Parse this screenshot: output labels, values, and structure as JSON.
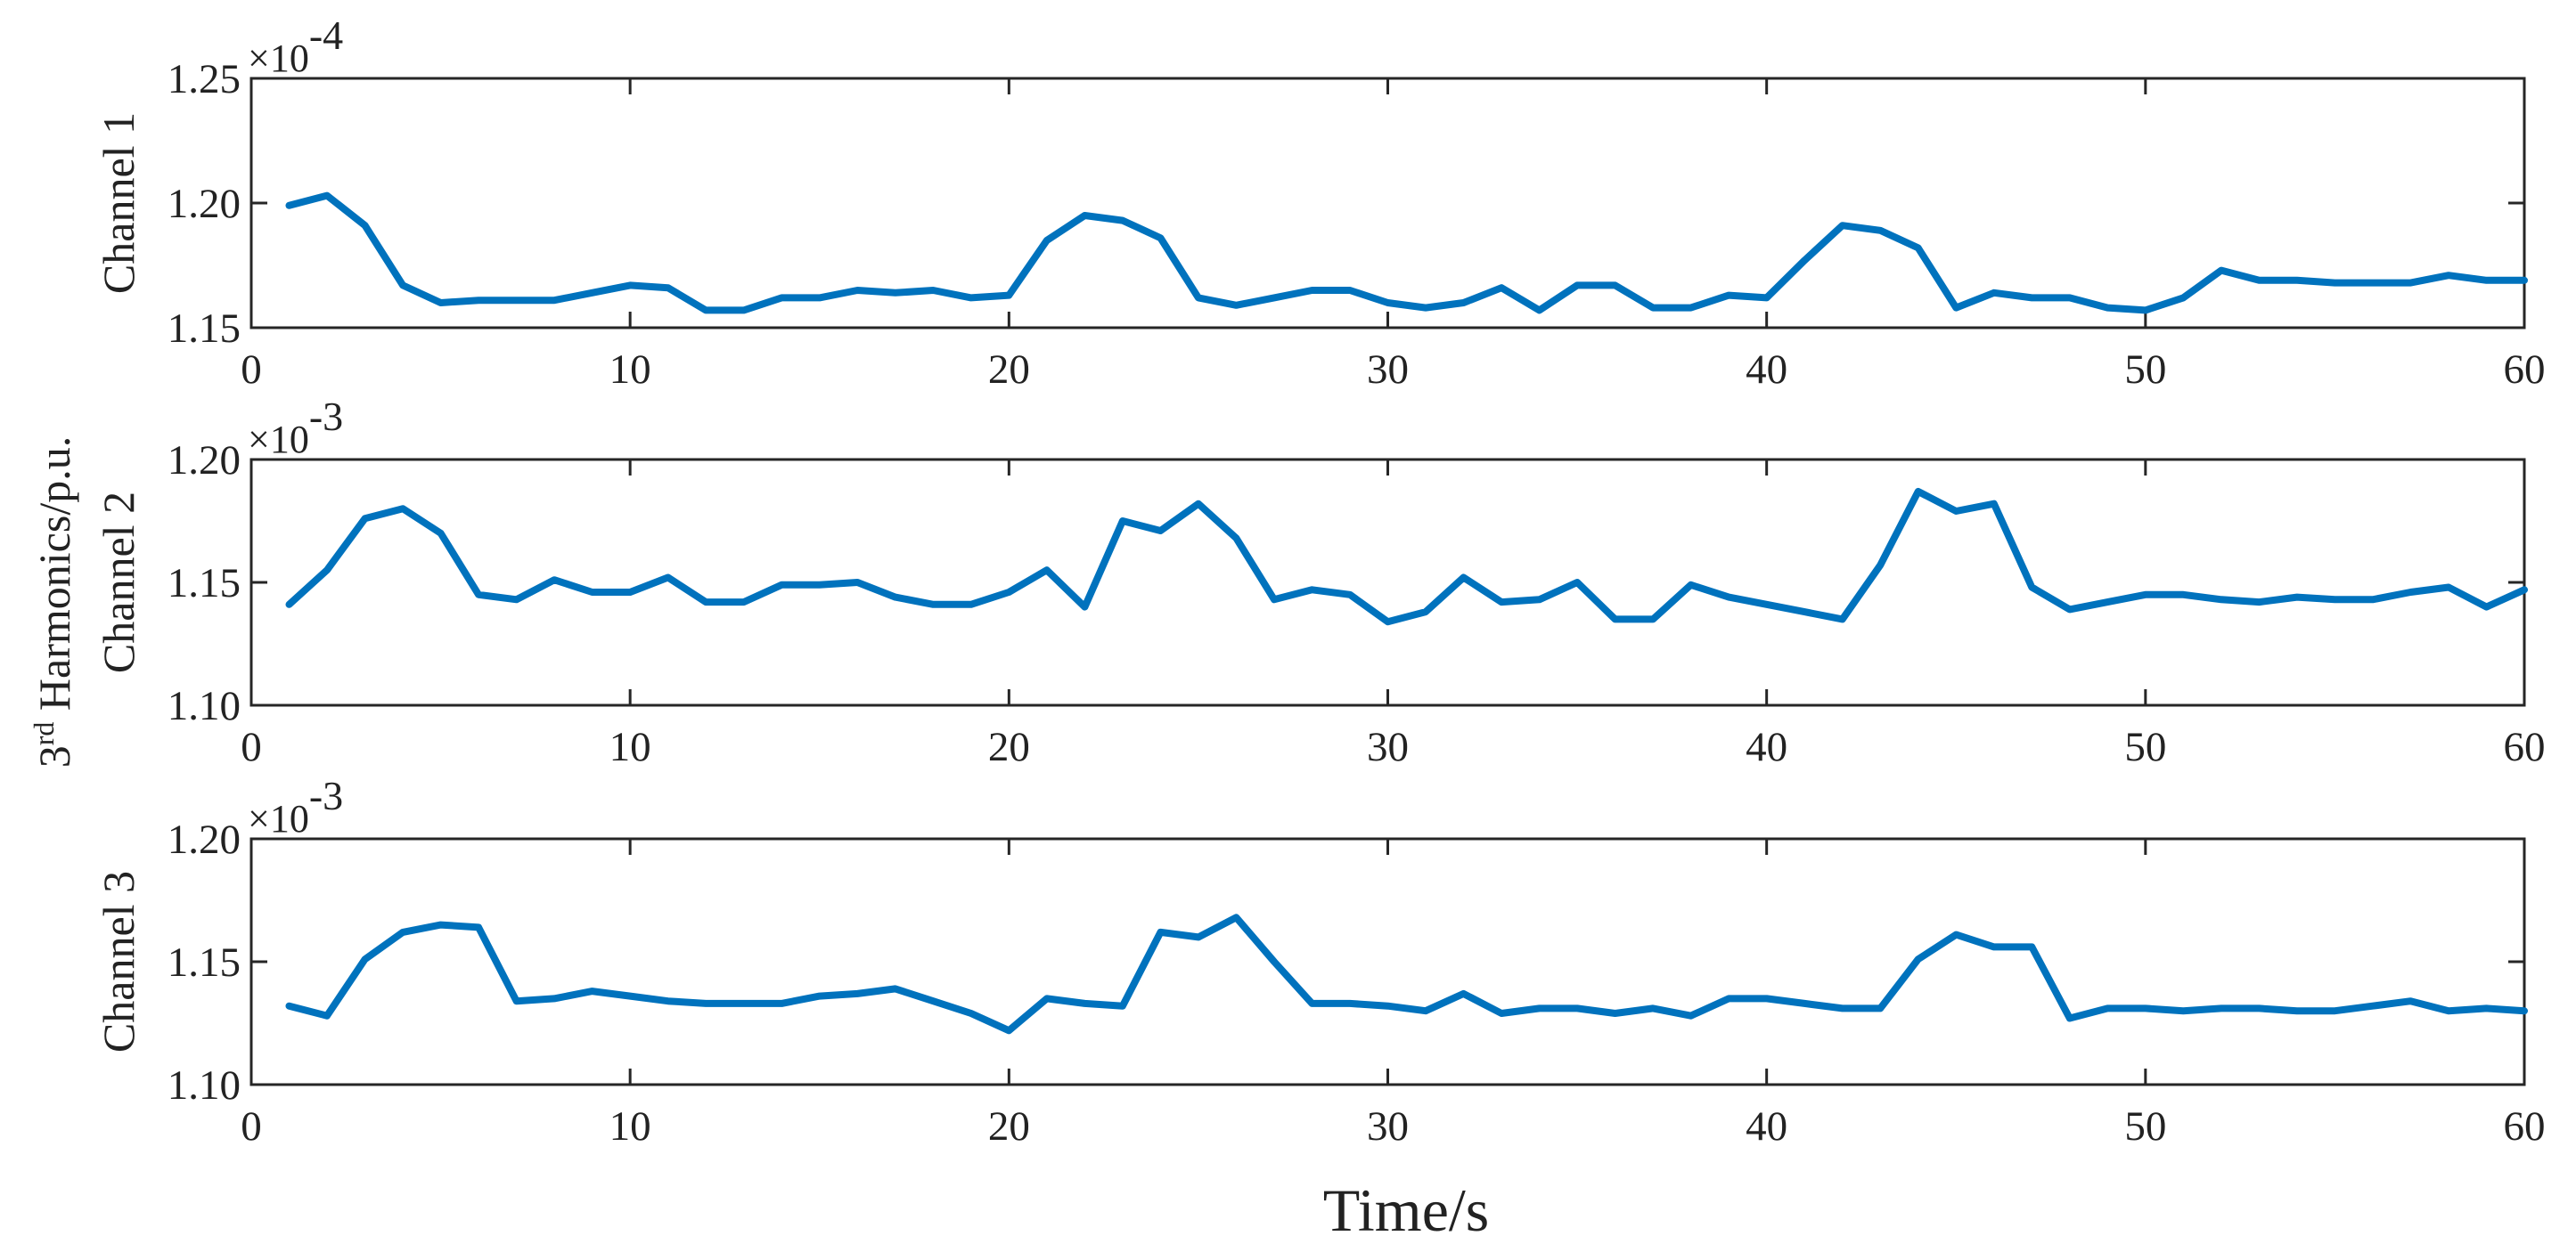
{
  "shared_ylabel": {
    "base": "3",
    "sup": "rd",
    "rest": " Harmonics/p.u."
  },
  "xlabel": "Time/s",
  "colors": {
    "line": "#0072BD",
    "axis": "#262626"
  },
  "chart_data": [
    {
      "type": "line",
      "ylabel": "Channel 1",
      "exponent": {
        "base": "×10",
        "power": "-4"
      },
      "xlim": [
        0,
        60
      ],
      "ylim": [
        1.15,
        1.25
      ],
      "xticks": [
        0,
        10,
        20,
        30,
        40,
        50,
        60
      ],
      "yticks": [
        1.15,
        1.2,
        1.25
      ],
      "yticklabels": [
        "1.15",
        "1.20",
        "1.25"
      ],
      "x": [
        1,
        2,
        3,
        4,
        5,
        6,
        7,
        8,
        9,
        10,
        11,
        12,
        13,
        14,
        15,
        16,
        17,
        18,
        19,
        20,
        21,
        22,
        23,
        24,
        25,
        26,
        27,
        28,
        29,
        30,
        31,
        32,
        33,
        34,
        35,
        36,
        37,
        38,
        39,
        40,
        41,
        42,
        43,
        44,
        45,
        46,
        47,
        48,
        49,
        50,
        51,
        52,
        53,
        54,
        55,
        56,
        57,
        58,
        59,
        60
      ],
      "y": [
        1.199,
        1.203,
        1.191,
        1.167,
        1.16,
        1.161,
        1.161,
        1.161,
        1.164,
        1.167,
        1.166,
        1.157,
        1.157,
        1.162,
        1.162,
        1.165,
        1.164,
        1.165,
        1.162,
        1.163,
        1.185,
        1.195,
        1.193,
        1.186,
        1.162,
        1.159,
        1.162,
        1.165,
        1.165,
        1.16,
        1.158,
        1.16,
        1.166,
        1.157,
        1.167,
        1.167,
        1.158,
        1.158,
        1.163,
        1.162,
        1.177,
        1.191,
        1.189,
        1.182,
        1.158,
        1.164,
        1.162,
        1.162,
        1.158,
        1.157,
        1.162,
        1.173,
        1.169,
        1.169,
        1.168,
        1.168,
        1.168,
        1.171,
        1.169,
        1.169
      ]
    },
    {
      "type": "line",
      "ylabel": "Channel 2",
      "exponent": {
        "base": "×10",
        "power": "-3"
      },
      "xlim": [
        0,
        60
      ],
      "ylim": [
        1.1,
        1.2
      ],
      "xticks": [
        0,
        10,
        20,
        30,
        40,
        50,
        60
      ],
      "yticks": [
        1.1,
        1.15,
        1.2
      ],
      "yticklabels": [
        "1.10",
        "1.15",
        "1.20"
      ],
      "x": [
        1,
        2,
        3,
        4,
        5,
        6,
        7,
        8,
        9,
        10,
        11,
        12,
        13,
        14,
        15,
        16,
        17,
        18,
        19,
        20,
        21,
        22,
        23,
        24,
        25,
        26,
        27,
        28,
        29,
        30,
        31,
        32,
        33,
        34,
        35,
        36,
        37,
        38,
        39,
        40,
        41,
        42,
        43,
        44,
        45,
        46,
        47,
        48,
        49,
        50,
        51,
        52,
        53,
        54,
        55,
        56,
        57,
        58,
        59,
        60
      ],
      "y": [
        1.141,
        1.155,
        1.176,
        1.18,
        1.17,
        1.145,
        1.143,
        1.151,
        1.146,
        1.146,
        1.152,
        1.142,
        1.142,
        1.149,
        1.149,
        1.15,
        1.144,
        1.141,
        1.141,
        1.146,
        1.155,
        1.14,
        1.175,
        1.171,
        1.182,
        1.168,
        1.143,
        1.147,
        1.145,
        1.134,
        1.138,
        1.152,
        1.142,
        1.143,
        1.15,
        1.135,
        1.135,
        1.149,
        1.144,
        1.141,
        1.138,
        1.135,
        1.157,
        1.187,
        1.179,
        1.182,
        1.148,
        1.139,
        1.142,
        1.145,
        1.145,
        1.143,
        1.142,
        1.144,
        1.143,
        1.143,
        1.146,
        1.148,
        1.14,
        1.147
      ]
    },
    {
      "type": "line",
      "ylabel": "Channel 3",
      "exponent": {
        "base": "×10",
        "power": "-3"
      },
      "xlim": [
        0,
        60
      ],
      "ylim": [
        1.1,
        1.2
      ],
      "xticks": [
        0,
        10,
        20,
        30,
        40,
        50,
        60
      ],
      "yticks": [
        1.1,
        1.15,
        1.2
      ],
      "yticklabels": [
        "1.10",
        "1.15",
        "1.20"
      ],
      "x": [
        1,
        2,
        3,
        4,
        5,
        6,
        7,
        8,
        9,
        10,
        11,
        12,
        13,
        14,
        15,
        16,
        17,
        18,
        19,
        20,
        21,
        22,
        23,
        24,
        25,
        26,
        27,
        28,
        29,
        30,
        31,
        32,
        33,
        34,
        35,
        36,
        37,
        38,
        39,
        40,
        41,
        42,
        43,
        44,
        45,
        46,
        47,
        48,
        49,
        50,
        51,
        52,
        53,
        54,
        55,
        56,
        57,
        58,
        59,
        60
      ],
      "y": [
        1.132,
        1.128,
        1.151,
        1.162,
        1.165,
        1.164,
        1.134,
        1.135,
        1.138,
        1.136,
        1.134,
        1.133,
        1.133,
        1.133,
        1.136,
        1.137,
        1.139,
        1.134,
        1.129,
        1.122,
        1.135,
        1.133,
        1.132,
        1.162,
        1.16,
        1.168,
        1.15,
        1.133,
        1.133,
        1.132,
        1.13,
        1.137,
        1.129,
        1.131,
        1.131,
        1.129,
        1.131,
        1.128,
        1.135,
        1.135,
        1.133,
        1.131,
        1.131,
        1.151,
        1.161,
        1.156,
        1.156,
        1.127,
        1.131,
        1.131,
        1.13,
        1.131,
        1.131,
        1.13,
        1.13,
        1.132,
        1.134,
        1.13,
        1.131,
        1.13
      ]
    }
  ]
}
